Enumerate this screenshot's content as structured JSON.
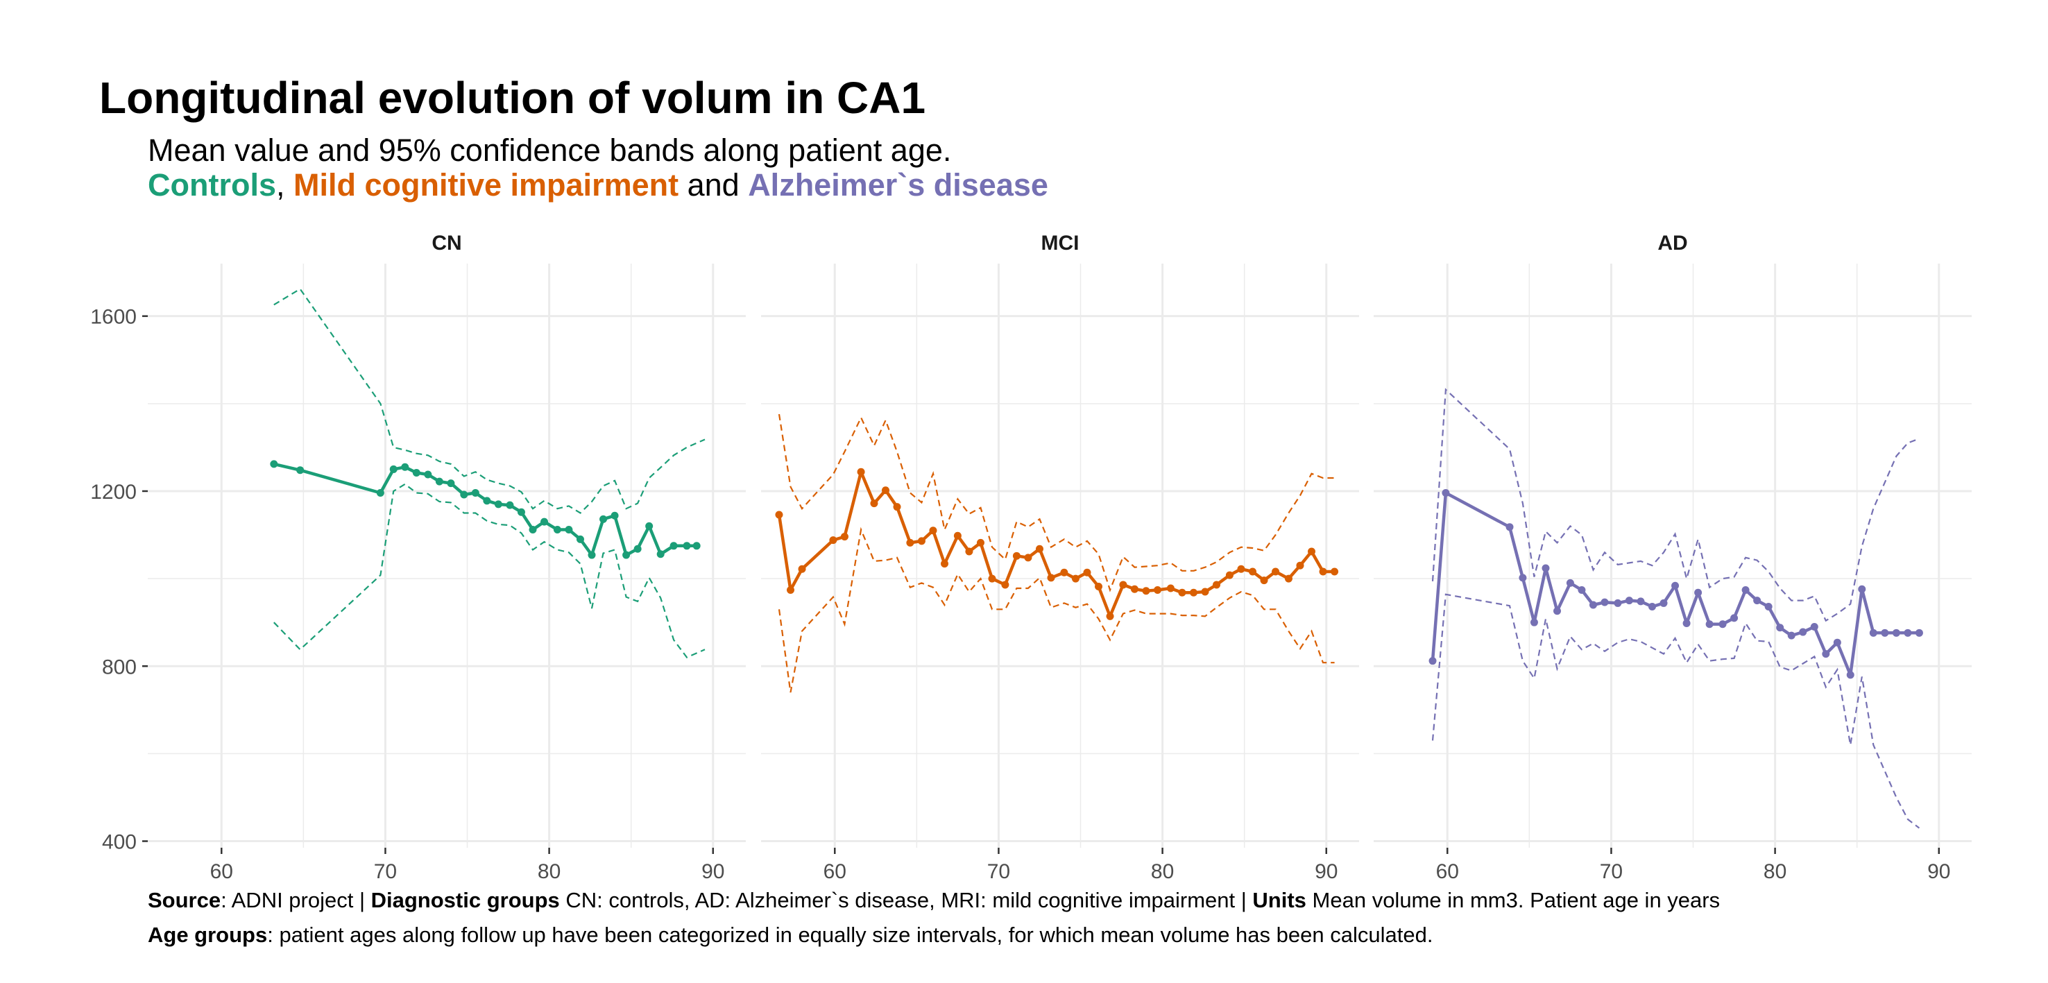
{
  "title": "Longitudinal evolution of volum in CA1",
  "subtitle": {
    "line1": "Mean value and 95% confidence bands along patient age.",
    "group1": "Controls",
    "sep1": ", ",
    "group2": "Mild cognitive impairment",
    "sep2": " and ",
    "group3": "Alzheimer`s disease"
  },
  "caption": {
    "line1": [
      {
        "text": "Source",
        "bold": true
      },
      {
        "text": ": ADNI project | ",
        "bold": false
      },
      {
        "text": "Diagnostic groups",
        "bold": true
      },
      {
        "text": " CN: controls, AD: Alzheimer`s disease, MRI: mild cognitive impairment | ",
        "bold": false
      },
      {
        "text": "Units",
        "bold": true
      },
      {
        "text": " Mean volume in mm3. Patient age in years",
        "bold": false
      }
    ],
    "line2": [
      {
        "text": "Age groups",
        "bold": true
      },
      {
        "text": ": patient ages along follow up have been categorized in equally size intervals, for which mean volume has been calculated.",
        "bold": false
      }
    ]
  },
  "colors": {
    "CN": "#1b9e77",
    "MCI": "#d95f02",
    "AD": "#7570b3",
    "grid": "#ebebeb",
    "text": "#4d4d4d"
  },
  "chart_data": {
    "type": "line",
    "xlim": [
      55.5,
      92
    ],
    "ylim": [
      385,
      1720
    ],
    "x_ticks": [
      60,
      70,
      80,
      90
    ],
    "y_ticks": [
      400,
      800,
      1200,
      1600
    ],
    "grid": true,
    "panels": [
      {
        "label": "CN",
        "color_key": "CN",
        "mean": {
          "x": [
            63.2,
            64.8,
            69.7,
            70.5,
            71.2,
            71.9,
            72.6,
            73.3,
            74.0,
            74.8,
            75.5,
            76.2,
            76.9,
            77.6,
            78.3,
            79.0,
            79.7,
            80.5,
            81.2,
            81.9,
            82.6,
            83.3,
            84.0,
            84.7,
            85.4,
            86.1,
            86.8,
            87.6,
            88.4,
            89.0
          ],
          "y": [
            1262,
            1248,
            1196,
            1250,
            1255,
            1242,
            1238,
            1222,
            1218,
            1192,
            1196,
            1178,
            1170,
            1168,
            1152,
            1112,
            1130,
            1112,
            1112,
            1090,
            1054,
            1136,
            1144,
            1054,
            1068,
            1120,
            1056,
            1075,
            1075,
            1075
          ]
        },
        "upper": {
          "x": [
            63.2,
            64.8,
            69.7,
            70.5,
            71.2,
            71.9,
            72.6,
            73.3,
            74.0,
            74.8,
            75.5,
            76.2,
            76.9,
            77.6,
            78.3,
            79.0,
            79.7,
            80.5,
            81.2,
            81.9,
            82.6,
            83.3,
            84.0,
            84.7,
            85.4,
            86.1,
            86.8,
            87.6,
            88.4,
            89.5
          ],
          "y": [
            1626,
            1662,
            1400,
            1300,
            1294,
            1286,
            1282,
            1268,
            1262,
            1234,
            1244,
            1226,
            1218,
            1212,
            1198,
            1160,
            1178,
            1160,
            1166,
            1150,
            1176,
            1212,
            1224,
            1160,
            1172,
            1230,
            1254,
            1282,
            1300,
            1318
          ]
        },
        "lower": {
          "x": [
            63.2,
            64.8,
            69.7,
            70.5,
            71.2,
            71.9,
            72.6,
            73.3,
            74.0,
            74.8,
            75.5,
            76.2,
            76.9,
            77.6,
            78.3,
            79.0,
            79.7,
            80.5,
            81.2,
            81.9,
            82.6,
            83.3,
            84.0,
            84.7,
            85.4,
            86.1,
            86.8,
            87.6,
            88.4,
            89.5
          ],
          "y": [
            900,
            838,
            1008,
            1200,
            1216,
            1196,
            1194,
            1176,
            1174,
            1150,
            1150,
            1132,
            1124,
            1122,
            1104,
            1066,
            1084,
            1066,
            1060,
            1034,
            932,
            1058,
            1066,
            958,
            948,
            1002,
            956,
            860,
            820,
            838
          ]
        }
      },
      {
        "label": "MCI",
        "color_key": "MCI",
        "mean": {
          "x": [
            56.6,
            57.3,
            58.0,
            59.9,
            60.6,
            61.6,
            62.4,
            63.1,
            63.8,
            64.6,
            65.3,
            66.0,
            66.7,
            67.5,
            68.2,
            68.9,
            69.6,
            70.4,
            71.1,
            71.8,
            72.5,
            73.2,
            74.0,
            74.7,
            75.4,
            76.1,
            76.8,
            77.6,
            78.3,
            79.0,
            79.7,
            80.5,
            81.2,
            81.9,
            82.6,
            83.3,
            84.1,
            84.8,
            85.5,
            86.2,
            86.9,
            87.7,
            88.4,
            89.1,
            89.8,
            90.5
          ],
          "y": [
            1146,
            974,
            1022,
            1088,
            1096,
            1244,
            1172,
            1202,
            1164,
            1082,
            1086,
            1110,
            1034,
            1098,
            1062,
            1082,
            1000,
            986,
            1052,
            1048,
            1068,
            1002,
            1014,
            1000,
            1014,
            982,
            914,
            986,
            976,
            972,
            974,
            978,
            968,
            968,
            970,
            986,
            1008,
            1022,
            1016,
            996,
            1016,
            1000,
            1030,
            1062,
            1016,
            1016
          ]
        },
        "upper": {
          "x": [
            56.6,
            57.3,
            58.0,
            59.9,
            60.6,
            61.6,
            62.4,
            63.1,
            63.8,
            64.6,
            65.3,
            66.0,
            66.7,
            67.5,
            68.2,
            68.9,
            69.6,
            70.4,
            71.1,
            71.8,
            72.5,
            73.2,
            74.0,
            74.7,
            75.4,
            76.1,
            76.8,
            77.6,
            78.3,
            79.0,
            79.7,
            80.5,
            81.2,
            81.9,
            82.6,
            83.3,
            84.1,
            84.8,
            85.5,
            86.2,
            86.9,
            87.7,
            88.4,
            89.1,
            89.8,
            90.5
          ],
          "y": [
            1376,
            1210,
            1160,
            1238,
            1290,
            1368,
            1304,
            1362,
            1290,
            1196,
            1174,
            1240,
            1112,
            1182,
            1148,
            1162,
            1072,
            1044,
            1130,
            1118,
            1136,
            1072,
            1090,
            1072,
            1086,
            1056,
            974,
            1050,
            1026,
            1028,
            1030,
            1036,
            1018,
            1018,
            1026,
            1038,
            1060,
            1072,
            1070,
            1064,
            1100,
            1150,
            1190,
            1240,
            1230,
            1230
          ]
        },
        "lower": {
          "x": [
            56.6,
            57.3,
            58.0,
            59.9,
            60.6,
            61.6,
            62.4,
            63.1,
            63.8,
            64.6,
            65.3,
            66.0,
            66.7,
            67.5,
            68.2,
            68.9,
            69.6,
            70.4,
            71.1,
            71.8,
            72.5,
            73.2,
            74.0,
            74.7,
            75.4,
            76.1,
            76.8,
            77.6,
            78.3,
            79.0,
            79.7,
            80.5,
            81.2,
            81.9,
            82.6,
            83.3,
            84.1,
            84.8,
            85.5,
            86.2,
            86.9,
            87.7,
            88.4,
            89.1,
            89.8,
            90.5
          ],
          "y": [
            930,
            740,
            880,
            958,
            896,
            1112,
            1040,
            1042,
            1048,
            980,
            990,
            980,
            940,
            1010,
            970,
            1000,
            930,
            930,
            978,
            978,
            1002,
            934,
            944,
            934,
            942,
            908,
            860,
            920,
            928,
            920,
            920,
            920,
            916,
            916,
            914,
            934,
            956,
            970,
            962,
            930,
            930,
            880,
            840,
            880,
            808,
            808
          ]
        }
      },
      {
        "label": "AD",
        "color_key": "AD",
        "mean": {
          "x": [
            59.1,
            59.9,
            63.8,
            64.6,
            65.3,
            66.0,
            66.7,
            67.5,
            68.2,
            68.9,
            69.6,
            70.4,
            71.1,
            71.8,
            72.5,
            73.2,
            73.9,
            74.6,
            75.3,
            76.0,
            76.8,
            77.5,
            78.2,
            78.9,
            79.6,
            80.3,
            81.0,
            81.7,
            82.4,
            83.1,
            83.8,
            84.6,
            85.3,
            86.0,
            86.7,
            87.4,
            88.1,
            88.8
          ],
          "y": [
            812,
            1196,
            1118,
            1002,
            900,
            1024,
            926,
            990,
            974,
            940,
            946,
            944,
            950,
            948,
            936,
            944,
            984,
            898,
            968,
            896,
            896,
            910,
            974,
            950,
            936,
            888,
            870,
            878,
            890,
            828,
            854,
            780,
            976,
            876,
            876,
            876,
            876,
            876
          ]
        },
        "upper": {
          "x": [
            59.1,
            59.9,
            63.8,
            64.6,
            65.3,
            66.0,
            66.7,
            67.5,
            68.2,
            68.9,
            69.6,
            70.4,
            71.1,
            71.8,
            72.5,
            73.2,
            73.9,
            74.6,
            75.3,
            76.0,
            76.8,
            77.5,
            78.2,
            78.9,
            79.6,
            80.3,
            81.0,
            81.7,
            82.4,
            83.1,
            83.8,
            84.6,
            85.3,
            86.0,
            86.7,
            87.4,
            88.1,
            88.8
          ],
          "y": [
            994,
            1432,
            1296,
            1172,
            1004,
            1108,
            1082,
            1120,
            1100,
            1020,
            1060,
            1032,
            1036,
            1040,
            1030,
            1060,
            1102,
            1000,
            1090,
            980,
            1000,
            1004,
            1048,
            1042,
            1016,
            978,
            950,
            950,
            960,
            904,
            920,
            942,
            1074,
            1160,
            1220,
            1280,
            1310,
            1320
          ]
        },
        "lower": {
          "x": [
            59.1,
            59.9,
            63.8,
            64.6,
            65.3,
            66.0,
            66.7,
            67.5,
            68.2,
            68.9,
            69.6,
            70.4,
            71.1,
            71.8,
            72.5,
            73.2,
            73.9,
            74.6,
            75.3,
            76.0,
            76.8,
            77.5,
            78.2,
            78.9,
            79.6,
            80.3,
            81.0,
            81.7,
            82.4,
            83.1,
            83.8,
            84.6,
            85.3,
            86.0,
            86.7,
            87.4,
            88.1,
            88.8
          ],
          "y": [
            630,
            964,
            938,
            812,
            772,
            908,
            794,
            868,
            838,
            852,
            834,
            854,
            862,
            856,
            842,
            828,
            864,
            808,
            850,
            812,
            816,
            818,
            898,
            858,
            856,
            798,
            790,
            806,
            822,
            752,
            792,
            620,
            776,
            620,
            560,
            500,
            450,
            430
          ]
        }
      }
    ]
  }
}
